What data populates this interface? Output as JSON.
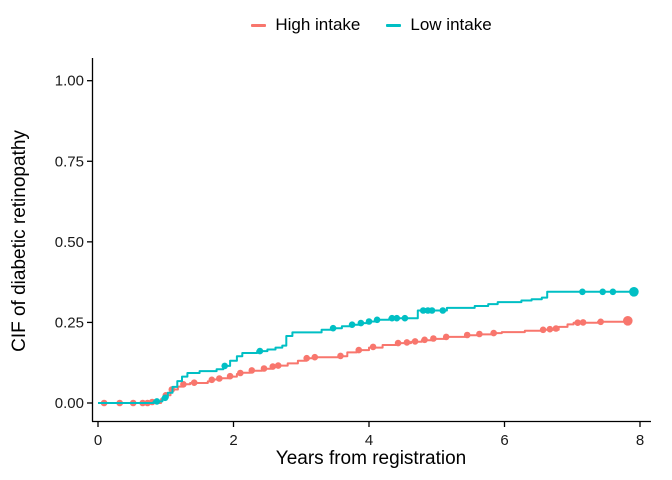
{
  "figure": {
    "background_color": "#FFFFFF",
    "axis_line_color": "#000000",
    "tick_label_color": "#1a1a1a"
  },
  "chart_data": {
    "type": "line",
    "subtype": "step-function cumulative incidence curves with event markers",
    "title": "",
    "xlabel": "Years from registration",
    "ylabel": "CIF of diabetic retinopathy",
    "xlim": [
      0,
      8.2
    ],
    "ylim": [
      0,
      1.05
    ],
    "grid": false,
    "legend_position": "top-center",
    "x_ticks": [
      {
        "label": "0",
        "value": 0
      },
      {
        "label": "2",
        "value": 2
      },
      {
        "label": "4",
        "value": 4
      },
      {
        "label": "6",
        "value": 6
      },
      {
        "label": "8",
        "value": 8
      }
    ],
    "y_ticks": [
      {
        "label": "0.00",
        "value": 0
      },
      {
        "label": "0.25",
        "value": 0.25
      },
      {
        "label": "0.50",
        "value": 0.5
      },
      {
        "label": "0.75",
        "value": 0.75
      },
      {
        "label": "1.00",
        "value": 1
      }
    ],
    "series": [
      {
        "name": "High intake",
        "color": "#F8766D",
        "steps": [
          [
            0,
            0
          ],
          [
            0.93,
            0.012
          ],
          [
            1.0,
            0.024
          ],
          [
            1.07,
            0.042
          ],
          [
            1.18,
            0.051
          ],
          [
            1.26,
            0.058
          ],
          [
            1.36,
            0.062
          ],
          [
            1.62,
            0.067
          ],
          [
            1.7,
            0.073
          ],
          [
            1.82,
            0.077
          ],
          [
            1.93,
            0.082
          ],
          [
            2.05,
            0.09
          ],
          [
            2.12,
            0.094
          ],
          [
            2.25,
            0.1
          ],
          [
            2.42,
            0.106
          ],
          [
            2.56,
            0.112
          ],
          [
            2.68,
            0.116
          ],
          [
            2.8,
            0.123
          ],
          [
            2.95,
            0.131
          ],
          [
            3.08,
            0.139
          ],
          [
            3.2,
            0.142
          ],
          [
            3.55,
            0.145
          ],
          [
            3.68,
            0.157
          ],
          [
            3.82,
            0.164
          ],
          [
            4.0,
            0.172
          ],
          [
            4.2,
            0.18
          ],
          [
            4.4,
            0.186
          ],
          [
            4.62,
            0.19
          ],
          [
            4.78,
            0.195
          ],
          [
            4.93,
            0.199
          ],
          [
            5.12,
            0.205
          ],
          [
            5.42,
            0.21
          ],
          [
            5.6,
            0.213
          ],
          [
            5.82,
            0.217
          ],
          [
            5.96,
            0.22
          ],
          [
            6.3,
            0.224
          ],
          [
            6.55,
            0.227
          ],
          [
            6.8,
            0.236
          ],
          [
            6.93,
            0.244
          ],
          [
            7.02,
            0.249
          ],
          [
            7.38,
            0.252
          ],
          [
            7.85,
            0.255
          ]
        ],
        "markers": [
          [
            0.09,
            0
          ],
          [
            0.32,
            0
          ],
          [
            0.52,
            0
          ],
          [
            0.66,
            0
          ],
          [
            0.73,
            0
          ],
          [
            0.8,
            0.003
          ],
          [
            1.0,
            0.024
          ],
          [
            1.09,
            0.042
          ],
          [
            1.26,
            0.058
          ],
          [
            1.42,
            0.063
          ],
          [
            1.68,
            0.072
          ],
          [
            1.79,
            0.076
          ],
          [
            1.95,
            0.083
          ],
          [
            2.1,
            0.093
          ],
          [
            2.27,
            0.101
          ],
          [
            2.45,
            0.107
          ],
          [
            2.58,
            0.113
          ],
          [
            2.66,
            0.116
          ],
          [
            3.08,
            0.139
          ],
          [
            3.2,
            0.142
          ],
          [
            3.58,
            0.146
          ],
          [
            3.85,
            0.164
          ],
          [
            4.06,
            0.174
          ],
          [
            4.43,
            0.186
          ],
          [
            4.56,
            0.188
          ],
          [
            4.68,
            0.191
          ],
          [
            4.82,
            0.196
          ],
          [
            4.95,
            0.2
          ],
          [
            5.14,
            0.205
          ],
          [
            5.45,
            0.211
          ],
          [
            5.63,
            0.214
          ],
          [
            5.84,
            0.217
          ],
          [
            6.57,
            0.227
          ],
          [
            6.67,
            0.229
          ],
          [
            6.76,
            0.231
          ],
          [
            7.08,
            0.249
          ],
          [
            7.16,
            0.25
          ],
          [
            7.42,
            0.252
          ]
        ],
        "end_marker": [
          7.82,
          0.255
        ],
        "final_value": 0.26
      },
      {
        "name": "Low intake",
        "color": "#00BFC4",
        "steps": [
          [
            0,
            0
          ],
          [
            0.82,
            0.005
          ],
          [
            0.95,
            0.016
          ],
          [
            1.03,
            0.032
          ],
          [
            1.1,
            0.05
          ],
          [
            1.17,
            0.068
          ],
          [
            1.24,
            0.082
          ],
          [
            1.32,
            0.093
          ],
          [
            1.5,
            0.099
          ],
          [
            1.75,
            0.105
          ],
          [
            1.85,
            0.115
          ],
          [
            1.95,
            0.131
          ],
          [
            2.05,
            0.145
          ],
          [
            2.13,
            0.155
          ],
          [
            2.35,
            0.161
          ],
          [
            2.5,
            0.166
          ],
          [
            2.62,
            0.172
          ],
          [
            2.72,
            0.178
          ],
          [
            2.78,
            0.208
          ],
          [
            2.87,
            0.219
          ],
          [
            3.3,
            0.227
          ],
          [
            3.45,
            0.232
          ],
          [
            3.6,
            0.238
          ],
          [
            3.75,
            0.243
          ],
          [
            3.88,
            0.248
          ],
          [
            4.0,
            0.253
          ],
          [
            4.12,
            0.258
          ],
          [
            4.3,
            0.263
          ],
          [
            4.72,
            0.287
          ],
          [
            5.15,
            0.295
          ],
          [
            5.56,
            0.301
          ],
          [
            5.76,
            0.307
          ],
          [
            5.9,
            0.313
          ],
          [
            6.25,
            0.318
          ],
          [
            6.4,
            0.322
          ],
          [
            6.55,
            0.327
          ],
          [
            6.63,
            0.345
          ],
          [
            7.97,
            0.345
          ]
        ],
        "markers": [
          [
            0.87,
            0.005
          ],
          [
            0.99,
            0.016
          ],
          [
            1.87,
            0.115
          ],
          [
            2.39,
            0.161
          ],
          [
            3.47,
            0.232
          ],
          [
            3.75,
            0.243
          ],
          [
            3.88,
            0.248
          ],
          [
            4.0,
            0.253
          ],
          [
            4.12,
            0.258
          ],
          [
            4.34,
            0.263
          ],
          [
            4.41,
            0.263
          ],
          [
            4.53,
            0.263
          ],
          [
            4.8,
            0.287
          ],
          [
            4.87,
            0.287
          ],
          [
            4.93,
            0.287
          ],
          [
            5.09,
            0.287
          ],
          [
            7.15,
            0.345
          ],
          [
            7.45,
            0.345
          ],
          [
            7.6,
            0.345
          ]
        ],
        "end_marker": [
          7.91,
          0.345
        ],
        "final_value": 0.35
      }
    ]
  }
}
